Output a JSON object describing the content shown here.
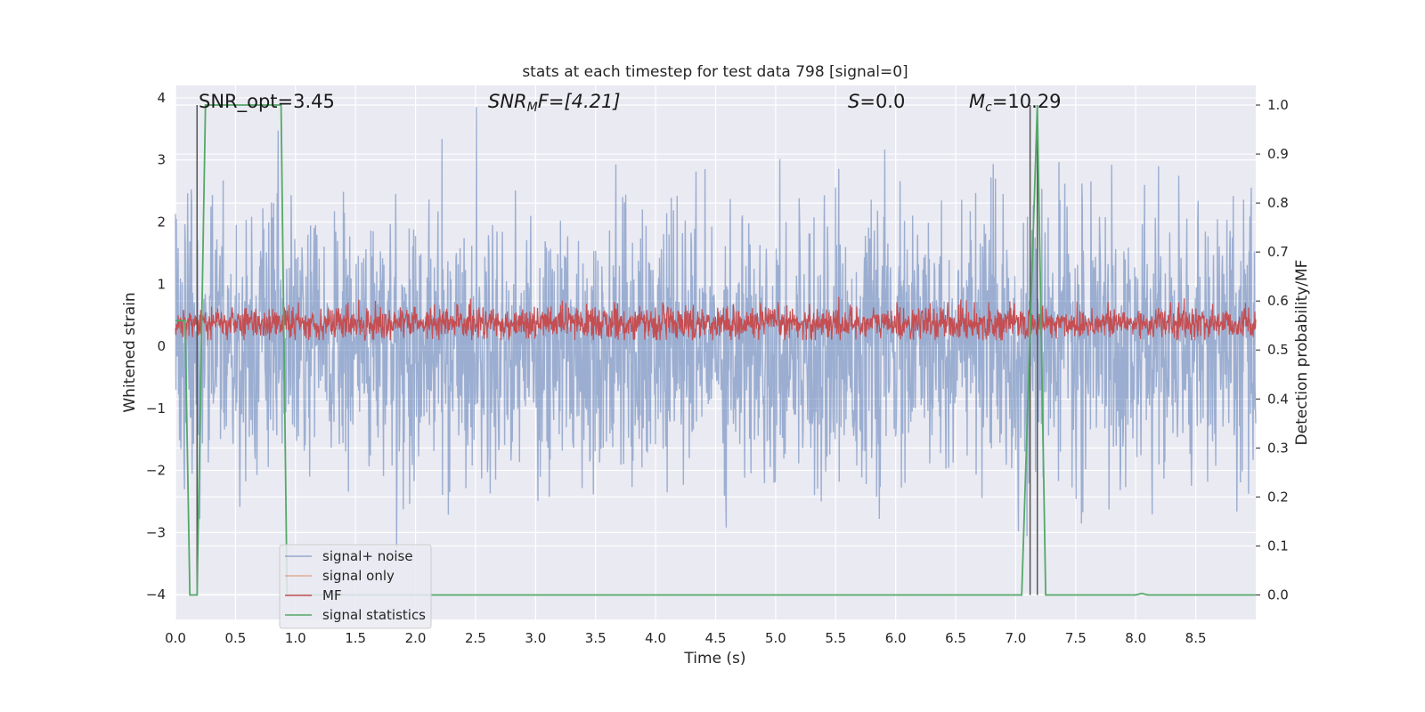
{
  "chart_data": {
    "type": "line",
    "title": "stats at each timestep for test data 798 [signal=0]",
    "xlabel": "Time (s)",
    "ylabel_left": "Whitened strain",
    "ylabel_right": "Detection probability/MF",
    "xlim": [
      0.0,
      9.0
    ],
    "ylim_left": [
      -4.4,
      4.2
    ],
    "ylim_right": [
      -0.05,
      1.04
    ],
    "xticks": [
      "0.0",
      "0.5",
      "1.0",
      "1.5",
      "2.0",
      "2.5",
      "3.0",
      "3.5",
      "4.0",
      "4.5",
      "5.0",
      "5.5",
      "6.0",
      "6.5",
      "7.0",
      "7.5",
      "8.0",
      "8.5"
    ],
    "yticks_left": [
      "4",
      "3",
      "2",
      "1",
      "0",
      "−1",
      "−2",
      "−3",
      "−4"
    ],
    "yticks_right": [
      "1.0",
      "0.9",
      "0.8",
      "0.7",
      "0.6",
      "0.5",
      "0.4",
      "0.3",
      "0.2",
      "0.1",
      "0.0"
    ],
    "grid": true,
    "legend_position": "lower-left",
    "annotations": {
      "snr_opt": "SNR_opt=3.45",
      "snr_mf_main": "SNR",
      "snr_mf_sub": "M",
      "snr_mf_rest": "F=[4.21]",
      "s_var": "S",
      "s_rest": "=0.0",
      "mc_var": "M",
      "mc_sub": "c",
      "mc_rest": "=10.29"
    },
    "vertical_lines_s": [
      0.18,
      7.12,
      7.18
    ],
    "series": [
      {
        "name": "signal+ noise",
        "color": "#4c72b0",
        "axis": "left",
        "description_values": {
          "envelope_typical": [
            -1.6,
            1.5
          ],
          "extremes": [
            -4.0,
            3.85
          ]
        }
      },
      {
        "name": "signal only",
        "color": "#dd8452",
        "axis": "left",
        "values": []
      },
      {
        "name": "MF",
        "color": "#c44e52",
        "axis": "right",
        "description_values": {
          "band": [
            0.52,
            0.62
          ],
          "peaks": [
            0.65,
            0.64
          ]
        }
      },
      {
        "name": "signal statistics",
        "color": "#55a868",
        "axis": "right",
        "x": [
          0.0,
          0.08,
          0.12,
          0.18,
          0.25,
          0.88,
          0.93,
          7.05,
          7.18,
          7.25,
          8.0,
          8.05,
          8.1,
          9.0
        ],
        "y": [
          0.56,
          0.56,
          0.0,
          0.0,
          1.0,
          1.0,
          0.0,
          0.0,
          1.0,
          0.0,
          0.0,
          0.003,
          0.0,
          0.0
        ]
      }
    ]
  }
}
